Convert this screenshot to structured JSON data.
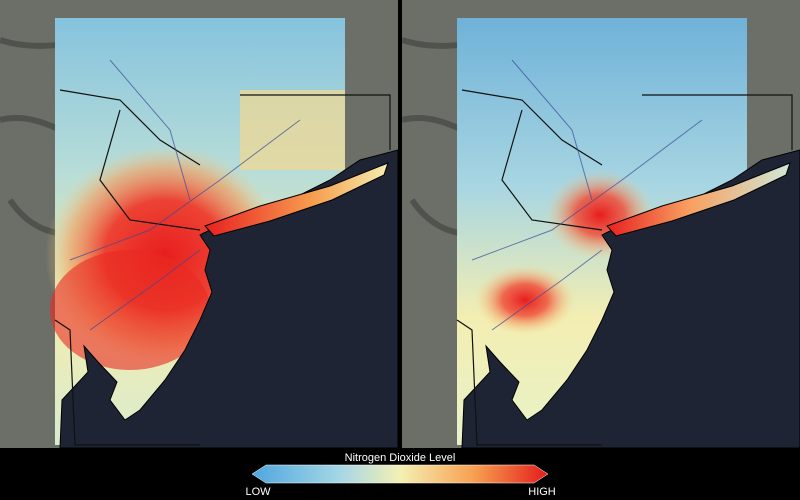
{
  "legend": {
    "title": "Nitrogen Dioxide Level",
    "low": "LOW",
    "high": "HIGH"
  }
}
